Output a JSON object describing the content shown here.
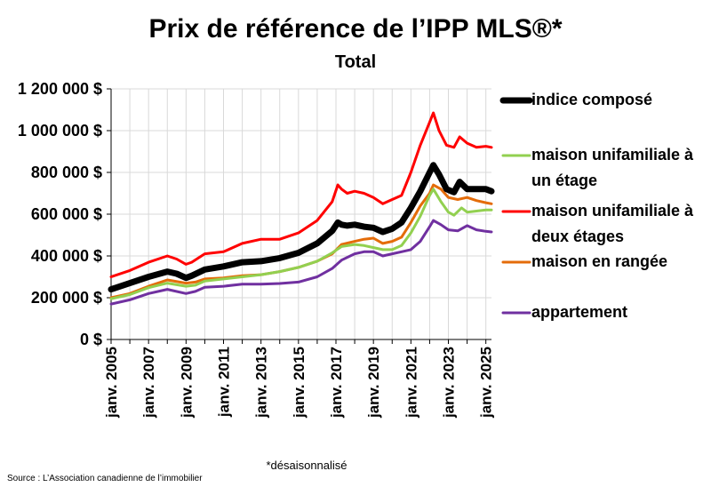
{
  "chart_data": {
    "type": "line",
    "title": "Prix de référence de l’IPP MLS®*",
    "subtitle": "Total",
    "ylim": [
      0,
      1200000
    ],
    "y_ticks": [
      0,
      200000,
      400000,
      600000,
      800000,
      1000000,
      1200000
    ],
    "y_tick_labels": [
      "0 $",
      "200 000 $",
      "400 000 $",
      "600 000 $",
      "800 000 $",
      "1 000 000 $",
      "1 200 000 $"
    ],
    "xlim": [
      2005,
      2025.3
    ],
    "x_ticks": [
      2005,
      2007,
      2009,
      2011,
      2013,
      2015,
      2017,
      2019,
      2021,
      2023,
      2025
    ],
    "x_tick_labels": [
      "janv. 2005",
      "janv. 2007",
      "janv. 2009",
      "janv. 2011",
      "janv. 2013",
      "janv. 2015",
      "janv. 2017",
      "janv. 2019",
      "janv. 2021",
      "janv. 2023",
      "janv. 2025"
    ],
    "grid": true,
    "legend_position": "right",
    "footnote": "*désaisonnalisé",
    "source": "Source : L’Association canadienne de l’immobilier",
    "series": [
      {
        "name": "maison unifamiliale à deux étages",
        "legend_lines": [
          "maison unifamiliale à",
          "deux étages"
        ],
        "color": "#ff0000",
        "width": 3,
        "x": [
          2005,
          2006,
          2007,
          2008,
          2008.5,
          2009,
          2009.3,
          2010,
          2011,
          2012,
          2013,
          2014,
          2015,
          2016,
          2016.8,
          2017.1,
          2017.3,
          2017.6,
          2018,
          2018.5,
          2019,
          2019.5,
          2020,
          2020.5,
          2021,
          2021.5,
          2022,
          2022.2,
          2022.5,
          2022.9,
          2023.3,
          2023.6,
          2024,
          2024.5,
          2025,
          2025.3
        ],
        "y": [
          300000,
          330000,
          370000,
          400000,
          385000,
          360000,
          370000,
          410000,
          420000,
          460000,
          480000,
          480000,
          510000,
          570000,
          660000,
          740000,
          720000,
          700000,
          710000,
          700000,
          680000,
          650000,
          670000,
          690000,
          800000,
          930000,
          1040000,
          1085000,
          1000000,
          930000,
          920000,
          970000,
          940000,
          920000,
          925000,
          920000
        ]
      },
      {
        "name": "maison en rangée",
        "legend_lines": [
          "maison en rangée"
        ],
        "color": "#e46c0a",
        "width": 3,
        "x": [
          2005,
          2006,
          2007,
          2008,
          2009,
          2009.5,
          2010,
          2011,
          2012,
          2013,
          2014,
          2015,
          2016,
          2016.8,
          2017.3,
          2018,
          2018.5,
          2019,
          2019.5,
          2020,
          2020.5,
          2021,
          2021.5,
          2022,
          2022.2,
          2022.6,
          2023,
          2023.5,
          2024,
          2024.5,
          2025,
          2025.3
        ],
        "y": [
          200000,
          220000,
          255000,
          285000,
          270000,
          275000,
          290000,
          295000,
          305000,
          310000,
          325000,
          345000,
          375000,
          410000,
          455000,
          470000,
          480000,
          485000,
          460000,
          470000,
          490000,
          560000,
          640000,
          700000,
          740000,
          720000,
          680000,
          670000,
          680000,
          665000,
          655000,
          650000
        ]
      },
      {
        "name": "maison unifamiliale à un étage",
        "legend_lines": [
          "maison unifamiliale à",
          "un étage"
        ],
        "color": "#92d050",
        "width": 3,
        "x": [
          2005,
          2006,
          2007,
          2008,
          2009,
          2009.5,
          2010,
          2011,
          2012,
          2013,
          2014,
          2015,
          2016,
          2016.8,
          2017.3,
          2018,
          2018.5,
          2019,
          2019.5,
          2020,
          2020.5,
          2021,
          2021.5,
          2022,
          2022.2,
          2022.6,
          2023,
          2023.3,
          2023.7,
          2024,
          2024.5,
          2025,
          2025.3
        ],
        "y": [
          195000,
          215000,
          248000,
          270000,
          255000,
          260000,
          280000,
          290000,
          300000,
          310000,
          325000,
          345000,
          375000,
          415000,
          445000,
          455000,
          450000,
          440000,
          430000,
          430000,
          450000,
          510000,
          590000,
          690000,
          720000,
          660000,
          610000,
          595000,
          630000,
          610000,
          615000,
          620000,
          620000
        ]
      },
      {
        "name": "appartement",
        "legend_lines": [
          "appartement"
        ],
        "color": "#7030a0",
        "width": 3,
        "x": [
          2005,
          2006,
          2007,
          2008,
          2009,
          2009.5,
          2010,
          2011,
          2012,
          2013,
          2014,
          2015,
          2016,
          2016.8,
          2017.3,
          2018,
          2018.5,
          2019,
          2019.5,
          2020,
          2020.5,
          2021,
          2021.5,
          2022,
          2022.2,
          2022.6,
          2023,
          2023.5,
          2024,
          2024.5,
          2025,
          2025.3
        ],
        "y": [
          170000,
          190000,
          220000,
          240000,
          220000,
          230000,
          250000,
          255000,
          265000,
          265000,
          268000,
          275000,
          300000,
          340000,
          380000,
          410000,
          420000,
          420000,
          400000,
          410000,
          420000,
          430000,
          470000,
          540000,
          570000,
          550000,
          525000,
          520000,
          545000,
          525000,
          518000,
          515000
        ]
      },
      {
        "name": "indice composé",
        "legend_lines": [
          "indice composé"
        ],
        "color": "#000000",
        "width": 7,
        "x": [
          2005,
          2006,
          2007,
          2008,
          2008.5,
          2009,
          2009.3,
          2010,
          2011,
          2012,
          2013,
          2014,
          2015,
          2016,
          2016.8,
          2017.1,
          2017.3,
          2017.6,
          2018,
          2018.5,
          2019,
          2019.5,
          2020,
          2020.5,
          2021,
          2021.5,
          2022,
          2022.2,
          2022.5,
          2022.9,
          2023.3,
          2023.6,
          2024,
          2024.5,
          2025,
          2025.3
        ],
        "y": [
          240000,
          270000,
          300000,
          325000,
          315000,
          295000,
          305000,
          335000,
          350000,
          370000,
          375000,
          390000,
          415000,
          460000,
          520000,
          560000,
          550000,
          545000,
          550000,
          540000,
          535000,
          515000,
          530000,
          560000,
          630000,
          710000,
          800000,
          835000,
          790000,
          720000,
          705000,
          755000,
          720000,
          720000,
          720000,
          710000
        ]
      }
    ],
    "legend_order": [
      "indice composé",
      "maison unifamiliale à un étage",
      "maison unifamiliale à deux étages",
      "maison en rangée",
      "appartement"
    ]
  }
}
